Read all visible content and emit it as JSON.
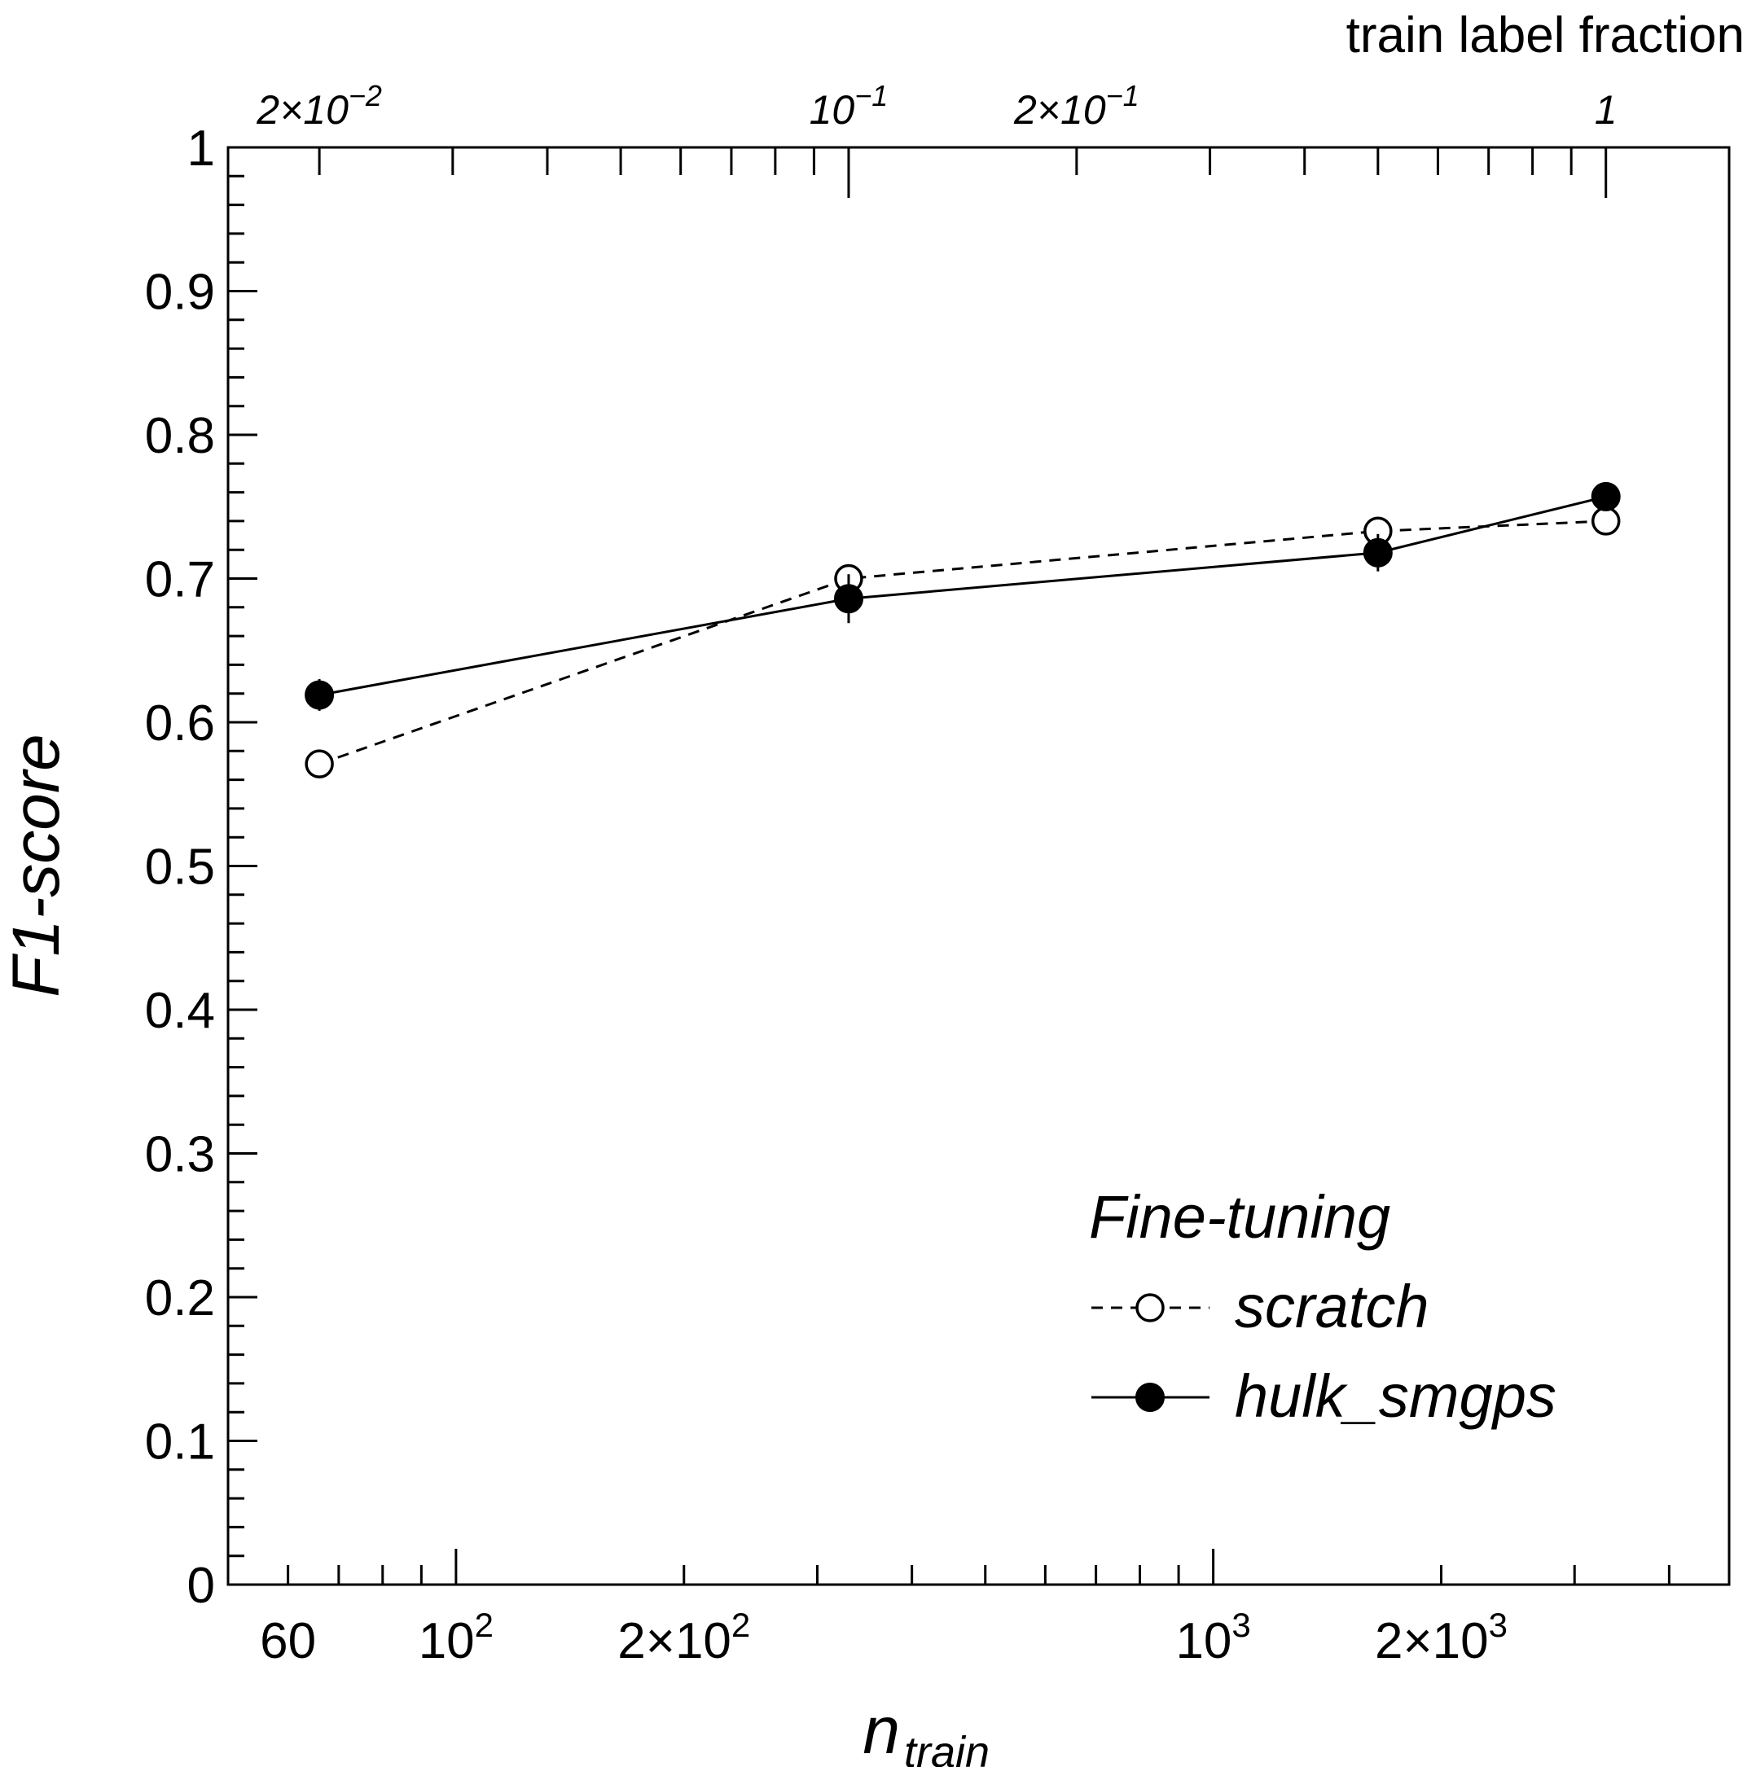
{
  "chart_data": {
    "type": "line",
    "xscale": "log",
    "xlim": [
      50,
      4800
    ],
    "ylim": [
      0,
      1
    ],
    "grid": false,
    "legend_placement": "bottom-right",
    "xlabel": "n",
    "xlabel_sub": "train",
    "ylabel": "F1-score",
    "top_axis_label": "train label fraction",
    "x_tick_labels": [
      {
        "value": 60,
        "label": "60"
      },
      {
        "value": 100,
        "label": "10",
        "sup": "2"
      },
      {
        "value": 200,
        "label": "2×10",
        "sup": "2"
      },
      {
        "value": 1000,
        "label": "10",
        "sup": "3"
      },
      {
        "value": 2000,
        "label": "2×10",
        "sup": "3"
      }
    ],
    "y_tick_labels": [
      "0",
      "0.1",
      "0.2",
      "0.3",
      "0.4",
      "0.5",
      "0.6",
      "0.7",
      "0.8",
      "0.9",
      "1"
    ],
    "top_tick_labels": [
      {
        "fraction": 0.02,
        "label": "2×10",
        "sup": "−2"
      },
      {
        "fraction": 0.1,
        "label": "10",
        "sup": "−1"
      },
      {
        "fraction": 0.2,
        "label": "2×10",
        "sup": "−1"
      },
      {
        "fraction": 1,
        "label": "1"
      }
    ],
    "x": [
      66,
      330,
      1650,
      3300
    ],
    "legend_title": "Fine-tuning",
    "series": [
      {
        "name": "scratch",
        "style": "dashed",
        "marker": "open-circle",
        "values": [
          0.571,
          0.7,
          0.733,
          0.74
        ],
        "errors": [
          0.006,
          0.008,
          0.006,
          0.005
        ]
      },
      {
        "name": "hulk_smgps",
        "style": "solid",
        "marker": "filled-circle",
        "values": [
          0.619,
          0.686,
          0.718,
          0.757
        ],
        "errors": [
          0.011,
          0.017,
          0.013,
          0.006
        ]
      }
    ]
  }
}
